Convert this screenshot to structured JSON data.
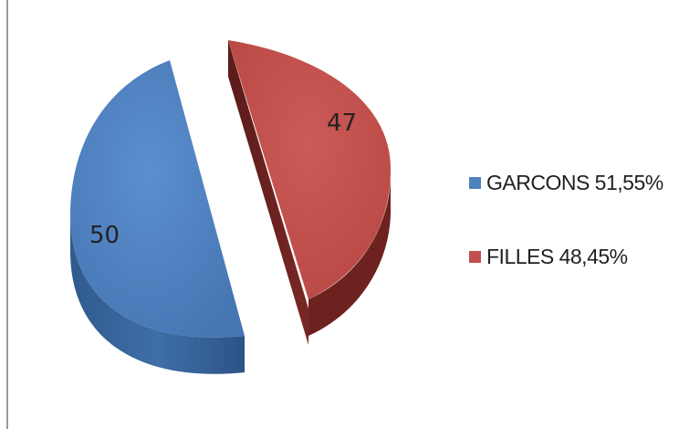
{
  "chart_data": {
    "type": "pie",
    "style": "3d-exploded",
    "slices": [
      {
        "name": "GARCONS 51,55%",
        "value": 50,
        "label": "50",
        "color": "#4f81bd"
      },
      {
        "name": "FILLES 48,45%",
        "value": 47,
        "label": "47",
        "color": "#c0504d"
      }
    ],
    "legend_position": "right",
    "title": ""
  }
}
